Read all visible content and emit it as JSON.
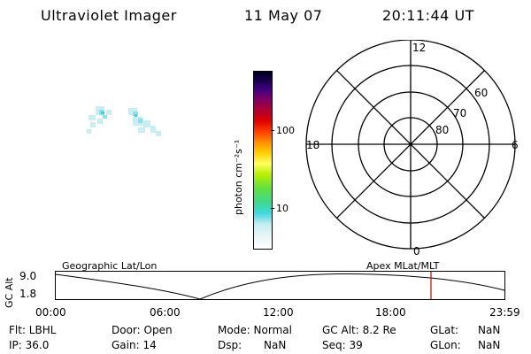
{
  "header": {
    "instrument": "Ultraviolet Imager",
    "date": "11 May 07",
    "time": "20:11:44 UT"
  },
  "colorbar": {
    "unit_label": "photon cm⁻²s⁻¹",
    "ticks": [
      "100",
      "10"
    ]
  },
  "polar": {
    "mlt_labels": {
      "top": "12",
      "left": "18",
      "right": "6",
      "bottom": "0"
    },
    "lat_labels": [
      "60",
      "70",
      "80"
    ]
  },
  "orbit": {
    "axis_label": "GC Alt",
    "y_ticks": [
      "9.0",
      "1.8"
    ],
    "left_title": "Geographic Lat/Lon",
    "right_title": "Apex MLat/MLT",
    "x_ticks": [
      "00:00",
      "06:00",
      "12:00",
      "18:00",
      "23:59"
    ],
    "current_marker_color": "#cc0000"
  },
  "status": {
    "flt": "Flt: LBHL",
    "ip": "IP: 36.0",
    "door": "Door: Open",
    "gain": "Gain: 14",
    "mode": "Mode: Normal",
    "dsp_label": "Dsp:",
    "dsp_value": "NaN",
    "gc_alt": "GC Alt: 8.2 Re",
    "seq": "Seq: 39",
    "glat_label": "GLat:",
    "glat_value": "NaN",
    "glon_label": "GLon:",
    "glon_value": "NaN"
  }
}
